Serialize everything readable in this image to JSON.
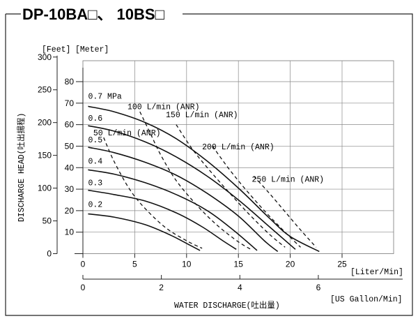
{
  "title": "DP-10BA□、 10BS□",
  "chart_data": {
    "type": "line",
    "x_primary": {
      "label": "WATER  DISCHARGE(吐出量)",
      "unit": "[Liter/Min]",
      "ticks": [
        0,
        5,
        10,
        15,
        20,
        25
      ],
      "range": [
        0,
        25
      ]
    },
    "x_secondary": {
      "unit": "[US Gallon/Min]",
      "ticks": [
        0,
        2,
        4,
        6
      ]
    },
    "y_primary": {
      "label": "DISCHARGE  HEAD(吐出揚程)",
      "unit": "[Meter]",
      "ticks": [
        10,
        20,
        30,
        40,
        50,
        60,
        70,
        80
      ],
      "range": [
        0,
        90
      ]
    },
    "y_secondary": {
      "unit": "[Feet]",
      "ticks": [
        0,
        50,
        100,
        150,
        200,
        250,
        300
      ]
    },
    "grid": true,
    "pressure_curves": [
      {
        "name": "0.7 MPa",
        "points": [
          [
            0.5,
            68.5
          ],
          [
            3,
            66
          ],
          [
            6,
            61
          ],
          [
            9,
            53.5
          ],
          [
            12,
            43
          ],
          [
            15,
            30.5
          ],
          [
            18,
            16.5
          ],
          [
            20,
            8
          ],
          [
            22.8,
            1
          ]
        ]
      },
      {
        "name": "0.6",
        "points": [
          [
            0.5,
            59.5
          ],
          [
            3,
            57
          ],
          [
            6,
            52
          ],
          [
            9,
            45
          ],
          [
            12,
            36
          ],
          [
            15,
            25
          ],
          [
            18,
            12.5
          ],
          [
            20.5,
            2
          ]
        ]
      },
      {
        "name": "0.5",
        "points": [
          [
            0.5,
            49.5
          ],
          [
            3,
            47
          ],
          [
            6,
            42.5
          ],
          [
            9,
            36.5
          ],
          [
            12,
            28
          ],
          [
            15,
            17.5
          ],
          [
            17.5,
            6
          ],
          [
            18.8,
            1
          ]
        ]
      },
      {
        "name": "0.4",
        "points": [
          [
            0.5,
            39
          ],
          [
            3,
            37
          ],
          [
            6,
            33
          ],
          [
            9,
            27.5
          ],
          [
            12,
            20
          ],
          [
            14.5,
            11
          ],
          [
            16.8,
            1.5
          ]
        ]
      },
      {
        "name": "0.3",
        "points": [
          [
            0.5,
            29.5
          ],
          [
            3,
            27.5
          ],
          [
            6,
            24.5
          ],
          [
            9,
            19
          ],
          [
            11.5,
            12.5
          ],
          [
            13.5,
            6
          ],
          [
            14.8,
            2
          ]
        ]
      },
      {
        "name": "0.2",
        "points": [
          [
            0.5,
            18.5
          ],
          [
            3,
            17
          ],
          [
            6,
            13.5
          ],
          [
            8.5,
            8.5
          ],
          [
            10.3,
            4
          ],
          [
            11.3,
            1.5
          ]
        ]
      }
    ],
    "air_consumption_curves": [
      {
        "name": "50 L/min (ANR)",
        "points": [
          [
            2,
            54
          ],
          [
            3,
            43
          ],
          [
            4.5,
            30
          ],
          [
            6,
            21
          ],
          [
            8,
            12
          ],
          [
            10,
            6
          ],
          [
            11.5,
            2.5
          ]
        ]
      },
      {
        "name": "100 L/min (ANR)",
        "points": [
          [
            5.5,
            66
          ],
          [
            6.5,
            56
          ],
          [
            7.5,
            46
          ],
          [
            9,
            34
          ],
          [
            11,
            22.5
          ],
          [
            13,
            13
          ],
          [
            15,
            5.5
          ],
          [
            16.2,
            2
          ]
        ]
      },
      {
        "name": "150 L/min (ANR)",
        "points": [
          [
            9,
            60
          ],
          [
            10.5,
            49
          ],
          [
            12,
            40
          ],
          [
            14,
            29
          ],
          [
            16,
            18.5
          ],
          [
            18,
            9
          ],
          [
            19.5,
            3
          ]
        ]
      },
      {
        "name": "200 L/min (ANR)",
        "points": [
          [
            12.5,
            50
          ],
          [
            14,
            40
          ],
          [
            15.5,
            31
          ],
          [
            17.5,
            20
          ],
          [
            19.5,
            10
          ],
          [
            21,
            3
          ]
        ]
      },
      {
        "name": "250 L/min (ANR)",
        "points": [
          [
            16.5,
            36
          ],
          [
            18,
            28
          ],
          [
            19.5,
            19.5
          ],
          [
            21,
            11
          ],
          [
            22.5,
            3
          ]
        ]
      }
    ]
  }
}
